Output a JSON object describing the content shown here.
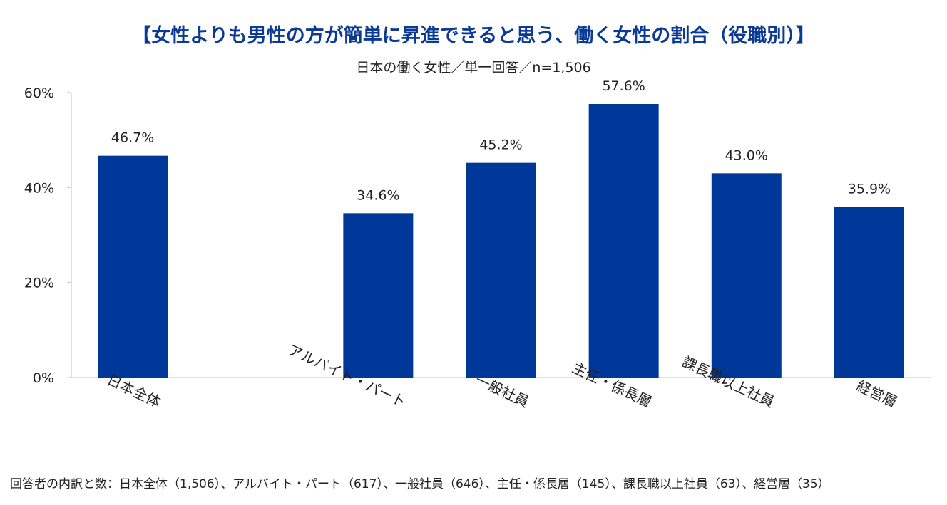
{
  "chart_data": {
    "type": "bar",
    "title": "【女性よりも男性の方が簡単に昇進できると思う、働く女性の割合（役職別）】",
    "subtitle": "日本の働く女性／単一回答／n=1,506",
    "categories": [
      "日本全体",
      "",
      "アルバイト・パート",
      "一般社員",
      "主任・係長層",
      "課長職以上社員",
      "経営層"
    ],
    "values": [
      46.7,
      null,
      34.6,
      45.2,
      57.6,
      43.0,
      35.9
    ],
    "value_labels": [
      "46.7%",
      "",
      "34.6%",
      "45.2%",
      "57.6%",
      "43.0%",
      "35.9%"
    ],
    "ylim": [
      0,
      60
    ],
    "yticks": [
      0,
      20,
      40,
      60
    ],
    "ytick_labels": [
      "0%",
      "20%",
      "40%",
      "60%"
    ],
    "xlabel": "",
    "ylabel": "",
    "grid": false,
    "legend": "none",
    "bar_color": "#00389a"
  },
  "footnote": "回答者の内訳と数：日本全体（1,506）、アルバイト・パート（617）、一般社員（646）、主任・係長層（145）、課長職以上社員（63）、経営層（35）"
}
